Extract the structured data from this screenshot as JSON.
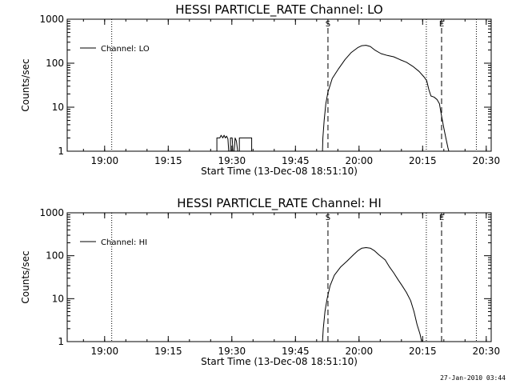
{
  "footer": {
    "timestamp": "27-Jan-2010 03:44"
  },
  "chart_data": [
    {
      "type": "line",
      "title": "HESSI PARTICLE_RATE Channel: LO",
      "xlabel": "Start Time (13-Dec-08 18:51:10)",
      "ylabel": "Counts/sec",
      "x_unit": "minutes after 18:51:10",
      "xlim": [
        0,
        100
      ],
      "ylim": [
        1,
        1000
      ],
      "yscale": "log",
      "x_ticks": [
        {
          "x": 8.83,
          "label": "19:00"
        },
        {
          "x": 23.83,
          "label": "19:15"
        },
        {
          "x": 38.83,
          "label": "19:30"
        },
        {
          "x": 53.83,
          "label": "19:45"
        },
        {
          "x": 68.83,
          "label": "20:00"
        },
        {
          "x": 83.83,
          "label": "20:15"
        },
        {
          "x": 98.83,
          "label": "20:30"
        }
      ],
      "y_ticks": [
        {
          "y": 1,
          "label": "1"
        },
        {
          "y": 10,
          "label": "10"
        },
        {
          "y": 100,
          "label": "100"
        },
        {
          "y": 1000,
          "label": "1000"
        }
      ],
      "legend": {
        "position": "top-left",
        "entries": [
          "Channel: LO"
        ]
      },
      "markers": {
        "dotted": [
          10.5,
          84.7,
          96.5
        ],
        "dashed": [
          {
            "x": 61.5,
            "label": "S"
          },
          {
            "x": 88.3,
            "label": "E"
          }
        ]
      },
      "series": [
        {
          "name": "Channel: LO",
          "segments": [
            [
              [
                35.3,
                1
              ],
              [
                35.3,
                2
              ],
              [
                36,
                2
              ],
              [
                36.3,
                2.3
              ],
              [
                36.7,
                2
              ],
              [
                37,
                2.3
              ],
              [
                37.3,
                2
              ],
              [
                37.6,
                2.2
              ],
              [
                37.9,
                1.9
              ],
              [
                38.1,
                1
              ],
              [
                38.5,
                1
              ],
              [
                38.5,
                2
              ],
              [
                38.9,
                2
              ],
              [
                39.1,
                1
              ],
              [
                39.4,
                1
              ],
              [
                39.6,
                2
              ],
              [
                39.9,
                1.7
              ],
              [
                40.2,
                1
              ],
              [
                40.6,
                1
              ],
              [
                40.6,
                2
              ],
              [
                43.5,
                2
              ],
              [
                43.5,
                1
              ]
            ],
            [
              [
                60.2,
                1
              ],
              [
                60.3,
                2
              ],
              [
                60.6,
                5
              ],
              [
                61,
                12
              ],
              [
                61.5,
                22
              ],
              [
                62.5,
                45
              ],
              [
                64,
                75
              ],
              [
                65.5,
                120
              ],
              [
                67,
                175
              ],
              [
                68.5,
                225
              ],
              [
                69.5,
                250
              ],
              [
                70.5,
                255
              ],
              [
                71.5,
                240
              ],
              [
                72.5,
                200
              ],
              [
                74,
                165
              ],
              [
                75.5,
                150
              ],
              [
                77,
                140
              ],
              [
                78.5,
                120
              ],
              [
                80,
                105
              ],
              [
                81.5,
                85
              ],
              [
                83,
                65
              ],
              [
                84.2,
                48
              ],
              [
                84.8,
                40
              ],
              [
                85.3,
                25
              ],
              [
                85.8,
                18
              ],
              [
                86.5,
                17
              ],
              [
                87.2,
                15
              ],
              [
                87.8,
                12
              ],
              [
                88.2,
                7
              ],
              [
                88.8,
                3.5
              ],
              [
                89.3,
                2
              ],
              [
                89.8,
                1.2
              ],
              [
                90,
                1
              ]
            ]
          ]
        }
      ]
    },
    {
      "type": "line",
      "title": "HESSI PARTICLE_RATE Channel: HI",
      "xlabel": "Start Time (13-Dec-08 18:51:10)",
      "ylabel": "Counts/sec",
      "x_unit": "minutes after 18:51:10",
      "xlim": [
        0,
        100
      ],
      "ylim": [
        1,
        1000
      ],
      "yscale": "log",
      "x_ticks": [
        {
          "x": 8.83,
          "label": "19:00"
        },
        {
          "x": 23.83,
          "label": "19:15"
        },
        {
          "x": 38.83,
          "label": "19:30"
        },
        {
          "x": 53.83,
          "label": "19:45"
        },
        {
          "x": 68.83,
          "label": "20:00"
        },
        {
          "x": 83.83,
          "label": "20:15"
        },
        {
          "x": 98.83,
          "label": "20:30"
        }
      ],
      "y_ticks": [
        {
          "y": 1,
          "label": "1"
        },
        {
          "y": 10,
          "label": "10"
        },
        {
          "y": 100,
          "label": "100"
        },
        {
          "y": 1000,
          "label": "1000"
        }
      ],
      "legend": {
        "position": "top-left",
        "entries": [
          "Channel: HI"
        ]
      },
      "markers": {
        "dotted": [
          10.5,
          84.7,
          96.5
        ],
        "dashed": [
          {
            "x": 61.5,
            "label": "S"
          },
          {
            "x": 88.3,
            "label": "E"
          }
        ]
      },
      "series": [
        {
          "name": "Channel: HI",
          "segments": [
            [
              [
                60.2,
                1
              ],
              [
                60.4,
                2
              ],
              [
                60.8,
                5
              ],
              [
                61.3,
                10
              ],
              [
                62,
                20
              ],
              [
                63,
                35
              ],
              [
                64.5,
                55
              ],
              [
                66,
                75
              ],
              [
                67.5,
                105
              ],
              [
                68.5,
                130
              ],
              [
                69.5,
                150
              ],
              [
                70.5,
                155
              ],
              [
                71.5,
                150
              ],
              [
                72.5,
                130
              ],
              [
                73.5,
                105
              ],
              [
                75,
                80
              ],
              [
                76,
                55
              ],
              [
                77,
                40
              ],
              [
                78,
                28
              ],
              [
                79,
                20
              ],
              [
                80,
                14
              ],
              [
                81,
                9
              ],
              [
                81.8,
                5
              ],
              [
                82.5,
                2.5
              ],
              [
                83.2,
                1.5
              ],
              [
                83.6,
                1
              ]
            ]
          ]
        }
      ]
    }
  ]
}
